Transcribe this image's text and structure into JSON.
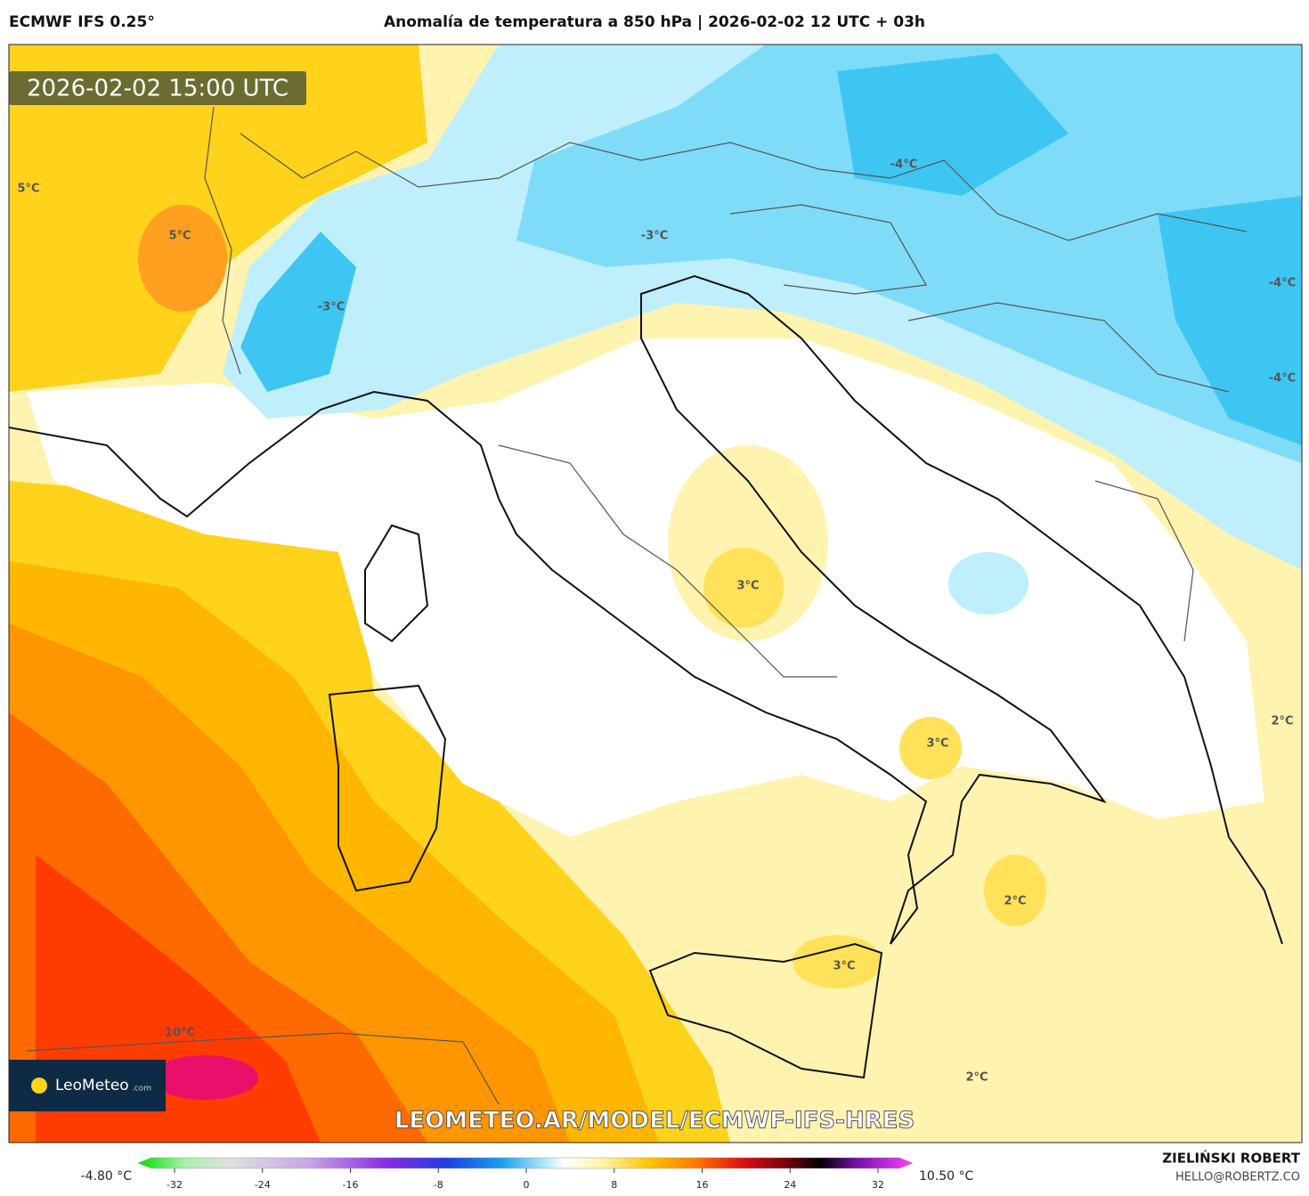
{
  "header": {
    "model": "ECMWF IFS 0.25°",
    "title": "Anomalía de temperatura a 850 hPa | 2026-02-02 12 UTC + 03h"
  },
  "map": {
    "timestamp": "2026-02-02 15:00 UTC",
    "watermark": "LEOMETEO.AR/MODEL/ECMWF-IFS-HRES",
    "logo": {
      "name": "LeoMeteo",
      "suffix": ".com"
    },
    "contour_labels": [
      "5°C",
      "5°C",
      "-3°C",
      "-4°C",
      "-3°C",
      "-4°C",
      "-4°C",
      "3°C",
      "3°C",
      "2°C",
      "2°C",
      "3°C",
      "10°C",
      "2°C"
    ]
  },
  "colorbar": {
    "min_label": "-4.80 °C",
    "max_label": "10.50 °C",
    "ticks": [
      -32,
      -24,
      -16,
      -8,
      0,
      8,
      16,
      24,
      32
    ]
  },
  "footer": {
    "author": "ZIELIŃSKI ROBERT",
    "contact": "HELLO@ROBERTZ.CO"
  }
}
